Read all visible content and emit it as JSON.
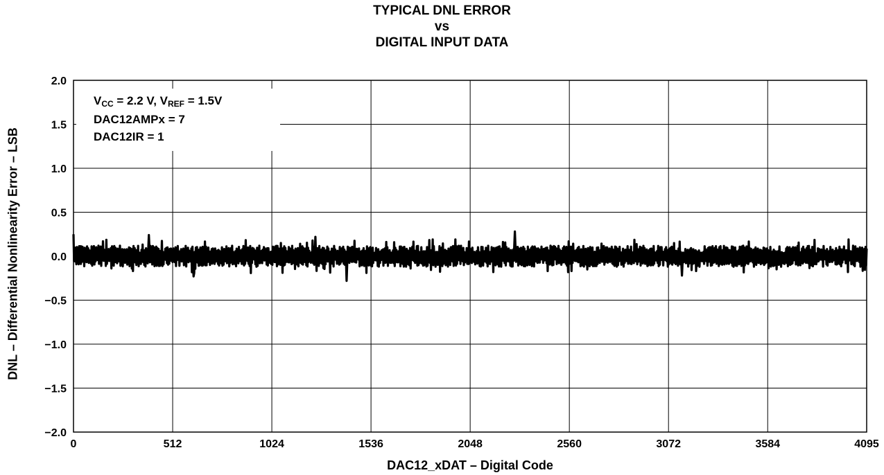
{
  "chart_data": {
    "type": "line",
    "title": [
      "TYPICAL DNL ERROR",
      "vs",
      "DIGITAL INPUT DATA"
    ],
    "xlabel": "DAC12_xDAT – Digital Code",
    "ylabel": "DNL – Differential Nonlinearity Error – LSB",
    "xlim": [
      0,
      4095
    ],
    "ylim": [
      -2.0,
      2.0
    ],
    "x_ticks": [
      0,
      512,
      1024,
      1536,
      2048,
      2560,
      3072,
      3584,
      4095
    ],
    "y_ticks": [
      2.0,
      1.5,
      1.0,
      0.5,
      0.0,
      -0.5,
      -1.0,
      -1.5,
      -2.0
    ],
    "y_tick_labels": [
      "2.0",
      "1.5",
      "1.0",
      "0.5",
      "0.0",
      "−0.5",
      "−1.0",
      "−1.5",
      "−2.0"
    ],
    "grid": true,
    "annotation": {
      "line1": {
        "v1": "V",
        "sub1": "CC",
        "mid": " = 2.2 V, V",
        "sub2": "REF",
        "end": " = 1.5V"
      },
      "line2": "DAC12AMPx = 7",
      "line3": "DAC12IR = 1"
    },
    "series": [
      {
        "approx_range": [
          -0.28,
          0.28
        ],
        "typical_band": [
          -0.12,
          0.12
        ],
        "color": "#000000",
        "peaks": [
          {
            "x": 0,
            "y": 0.25
          },
          {
            "x": 390,
            "y": 0.24
          },
          {
            "x": 1250,
            "y": 0.22
          },
          {
            "x": 2280,
            "y": 0.28
          },
          {
            "x": 1410,
            "y": -0.28
          },
          {
            "x": 620,
            "y": -0.23
          },
          {
            "x": 3140,
            "y": -0.22
          }
        ]
      }
    ]
  }
}
